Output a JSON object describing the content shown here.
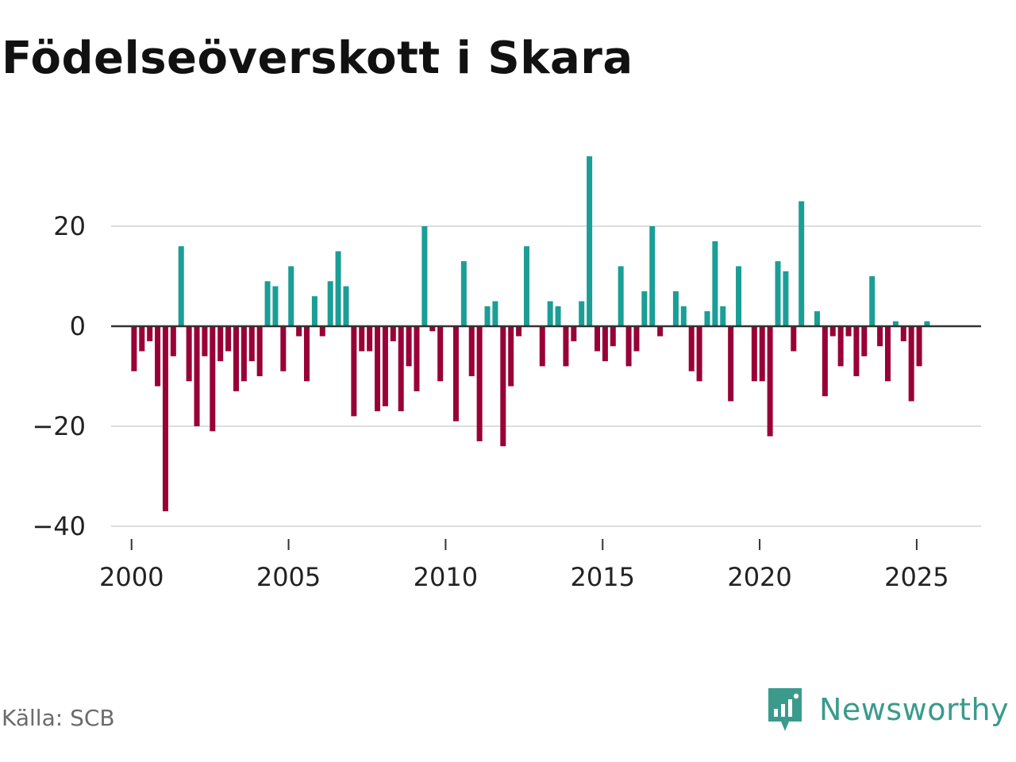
{
  "title": "Födelseöverskott i Skara",
  "source": "Källa: SCB",
  "brand": "Newsworthy",
  "colors": {
    "positive": "#1a9e96",
    "negative": "#990036",
    "grid": "#dddddd",
    "zero": "#333333"
  },
  "chart_data": {
    "type": "bar",
    "title": "Födelseöverskott i Skara",
    "xlabel": "",
    "ylabel": "",
    "frequency": "monthly",
    "start": "2000-01",
    "xlim": [
      1999.35,
      2027.05
    ],
    "ylim": [
      -42,
      38
    ],
    "yticks": [
      -40,
      -20,
      0,
      20
    ],
    "ytick_labels": [
      "−40",
      "−20",
      "0",
      "20"
    ],
    "xticks": [
      2000,
      2005,
      2010,
      2015,
      2020,
      2025
    ],
    "xtick_labels": [
      "2000",
      "2005",
      "2010",
      "2015",
      "2020",
      "2025"
    ],
    "grid": true,
    "x": [
      2000.08,
      2000.33,
      2000.58,
      2000.83,
      2001.08,
      2001.33,
      2001.58,
      2001.83,
      2002.08,
      2002.33,
      2002.58,
      2002.83,
      2003.08,
      2003.33,
      2003.58,
      2003.83,
      2004.08,
      2004.33,
      2004.58,
      2004.83,
      2005.08,
      2005.33,
      2005.58,
      2005.83,
      2006.08,
      2006.33,
      2006.58,
      2006.83,
      2007.08,
      2007.33,
      2007.58,
      2007.83,
      2008.08,
      2008.33,
      2008.58,
      2008.83,
      2009.08,
      2009.33,
      2009.58,
      2009.83,
      2010.08,
      2010.33,
      2010.58,
      2010.83,
      2011.08,
      2011.33,
      2011.58,
      2011.83,
      2012.08,
      2012.33,
      2012.58,
      2012.83,
      2013.08,
      2013.33,
      2013.58,
      2013.83,
      2014.08,
      2014.33,
      2014.58,
      2014.83,
      2015.08,
      2015.33,
      2015.58,
      2015.83,
      2016.08,
      2016.33,
      2016.58,
      2016.83,
      2017.08,
      2017.33,
      2017.58,
      2017.83,
      2018.08,
      2018.33,
      2018.58,
      2018.83,
      2019.08,
      2019.33,
      2019.58,
      2019.83,
      2020.08,
      2020.33,
      2020.58,
      2020.83,
      2021.08,
      2021.33,
      2021.58,
      2021.83,
      2022.08,
      2022.33,
      2022.58,
      2022.83,
      2023.08,
      2023.33,
      2023.58,
      2023.83,
      2024.08,
      2024.33,
      2024.58,
      2024.83,
      2025.08,
      2025.33
    ],
    "values": [
      -9,
      -5,
      -3,
      -12,
      -37,
      -6,
      16,
      -11,
      -20,
      -6,
      -21,
      -7,
      -5,
      -13,
      -11,
      -7,
      -10,
      9,
      8,
      -9,
      12,
      -2,
      -11,
      6,
      -2,
      9,
      15,
      8,
      -18,
      -5,
      -5,
      -17,
      -16,
      -3,
      -17,
      -8,
      -13,
      20,
      -1,
      -11,
      0,
      -19,
      13,
      -10,
      -23,
      4,
      5,
      -24,
      -12,
      -2,
      16,
      0,
      -8,
      5,
      4,
      -8,
      -3,
      5,
      34,
      -5,
      -7,
      -4,
      12,
      -8,
      -5,
      7,
      20,
      -2,
      0,
      7,
      4,
      -9,
      -11,
      3,
      17,
      4,
      -15,
      12,
      0,
      -11,
      -11,
      -22,
      13,
      11,
      -5,
      25,
      0,
      3,
      -14,
      -2,
      -8,
      -2,
      -10,
      -6,
      10,
      -4,
      -11,
      1,
      -3,
      -15,
      -8,
      1
    ]
  }
}
